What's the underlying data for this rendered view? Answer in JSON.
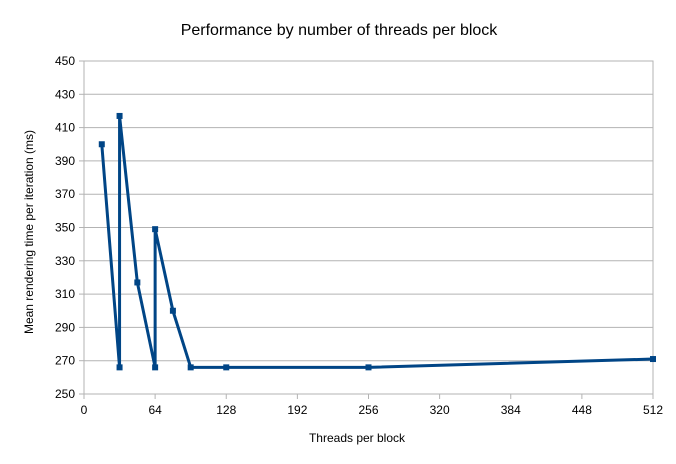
{
  "chart_data": {
    "type": "line",
    "title": "Performance by number of threads per block",
    "xlabel": "Threads per block",
    "ylabel": "Mean rendering time per iteration (ms)",
    "xlim": [
      0,
      512
    ],
    "ylim": [
      250,
      450
    ],
    "x_ticks": [
      0,
      64,
      128,
      192,
      256,
      320,
      384,
      448,
      512
    ],
    "y_ticks": [
      250,
      270,
      290,
      310,
      330,
      350,
      370,
      390,
      410,
      430,
      450
    ],
    "grid": "horizontal",
    "legend": "none",
    "series": [
      {
        "color": "#004586",
        "points": [
          {
            "x": 16,
            "y": 400
          },
          {
            "x": 32,
            "y": 266
          },
          {
            "x": 32,
            "y": 417
          },
          {
            "x": 48,
            "y": 317
          },
          {
            "x": 64,
            "y": 266
          },
          {
            "x": 64,
            "y": 349
          },
          {
            "x": 80,
            "y": 300
          },
          {
            "x": 96,
            "y": 266
          },
          {
            "x": 128,
            "y": 266
          },
          {
            "x": 256,
            "y": 266
          },
          {
            "x": 512,
            "y": 271
          }
        ]
      }
    ]
  }
}
